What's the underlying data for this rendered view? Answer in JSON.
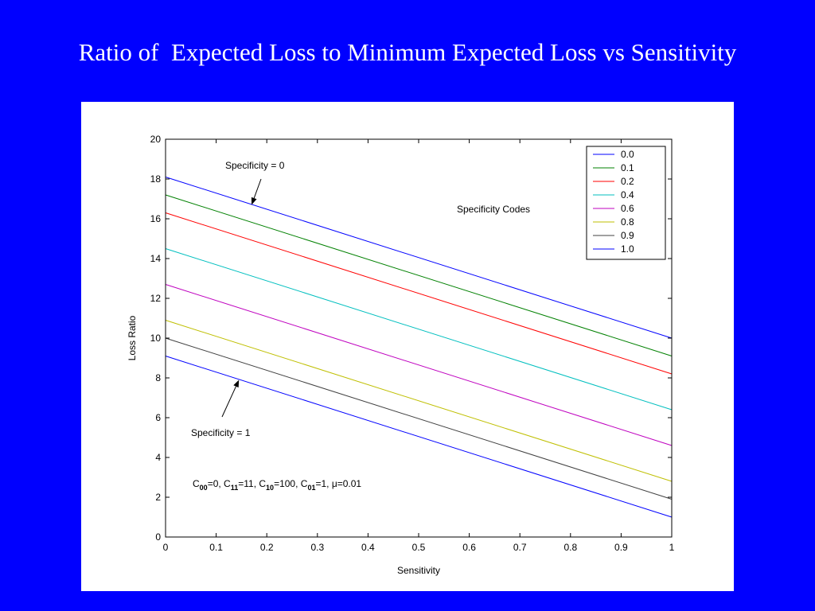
{
  "slide": {
    "title": "Ratio of  Expected Loss to Minimum Expected Loss vs Sensitivity",
    "background": "#0000FF"
  },
  "chart_data": {
    "type": "line",
    "title": "",
    "xlabel": "Sensitivity",
    "ylabel": "Loss Ratio",
    "xlim": [
      0,
      1
    ],
    "ylim": [
      0,
      20
    ],
    "xticks": [
      "0",
      "0.1",
      "0.2",
      "0.3",
      "0.4",
      "0.5",
      "0.6",
      "0.7",
      "0.8",
      "0.9",
      "1"
    ],
    "yticks": [
      "0",
      "2",
      "4",
      "6",
      "8",
      "10",
      "12",
      "14",
      "16",
      "18",
      "20"
    ],
    "grid": false,
    "legend_position": "top-right",
    "series": [
      {
        "name": "0.0",
        "color": "#0000FF",
        "x": [
          0,
          1
        ],
        "y": [
          18.1,
          10.0
        ]
      },
      {
        "name": "0.1",
        "color": "#008000",
        "x": [
          0,
          1
        ],
        "y": [
          17.2,
          9.1
        ]
      },
      {
        "name": "0.2",
        "color": "#FF0000",
        "x": [
          0,
          1
        ],
        "y": [
          16.3,
          8.2
        ]
      },
      {
        "name": "0.4",
        "color": "#00BFBF",
        "x": [
          0,
          1
        ],
        "y": [
          14.5,
          6.4
        ]
      },
      {
        "name": "0.6",
        "color": "#BF00BF",
        "x": [
          0,
          1
        ],
        "y": [
          12.7,
          4.6
        ]
      },
      {
        "name": "0.8",
        "color": "#BFBF00",
        "x": [
          0,
          1
        ],
        "y": [
          10.9,
          2.8
        ]
      },
      {
        "name": "0.9",
        "color": "#404040",
        "x": [
          0,
          1
        ],
        "y": [
          10.0,
          1.9
        ]
      },
      {
        "name": "1.0",
        "color": "#0000FF",
        "x": [
          0,
          1
        ],
        "y": [
          9.1,
          1.0
        ]
      }
    ],
    "annotations": {
      "legend_title": "Specificity Codes",
      "spec0": {
        "text": "Specificity = 0",
        "arrow_to": [
          0.17,
          16.7
        ]
      },
      "spec1": {
        "text": "Specificity = 1",
        "arrow_to": [
          0.145,
          7.9
        ]
      },
      "params": {
        "C00_base": "C",
        "C00_sub": "00",
        "C00_val": "=0, ",
        "C11_base": "C",
        "C11_sub": "11",
        "C11_val": "=11, ",
        "C10_base": "C",
        "C10_sub": "10",
        "C10_val": "=100, ",
        "C01_base": "C",
        "C01_sub": "01",
        "C01_val": "=1, ",
        "mu_text": "μ=0.01"
      }
    }
  }
}
